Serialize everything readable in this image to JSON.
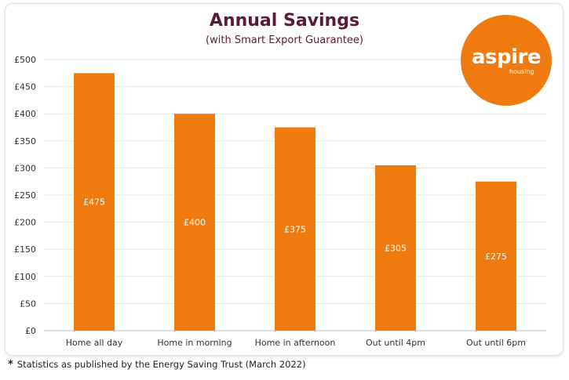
{
  "chart_data": {
    "type": "bar",
    "title": "Annual Savings",
    "subtitle": "(with Smart Export Guarantee)",
    "xlabel": "",
    "ylabel": "",
    "categories": [
      "Home all day",
      "Home in morning",
      "Home in afternoon",
      "Out until 4pm",
      "Out until 6pm"
    ],
    "values": [
      475,
      400,
      375,
      305,
      275
    ],
    "data_labels": [
      "£475",
      "£400",
      "£375",
      "£305",
      "£275"
    ],
    "ylim": [
      0,
      500
    ],
    "yticks": [
      0,
      50,
      100,
      150,
      200,
      250,
      300,
      350,
      400,
      450,
      500
    ],
    "ytick_labels": [
      "£0",
      "£50",
      "£100",
      "£150",
      "£200",
      "£250",
      "£300",
      "£350",
      "£400",
      "£450",
      "£500"
    ],
    "grid": true,
    "legend": "none",
    "bar_color": "#ef7b10"
  },
  "logo": {
    "main_text": "aspire",
    "sub_text": "housing",
    "color": "#ef7b10"
  },
  "footnote": {
    "star": "*",
    "text": "Statistics as published by the Energy Saving Trust (March 2022)"
  }
}
